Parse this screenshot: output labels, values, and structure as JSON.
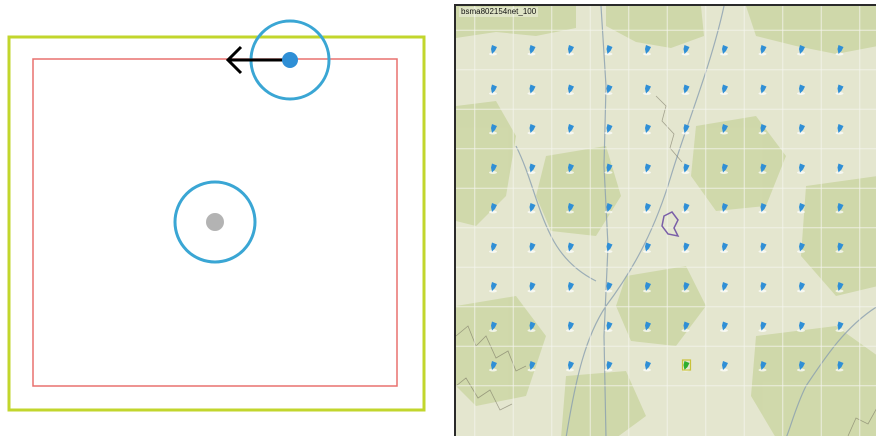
{
  "colors": {
    "outer_boundary": "#c2d62c",
    "inner_boundary": "#e8706e",
    "search_circle": "#3aa6d4",
    "active_point": "#2f8fd6",
    "inactive_point": "#b3b3b3",
    "arrow": "#000000",
    "map_background": "#e4e6cf",
    "map_patch": "#cdd7a6",
    "map_grid": "#f4f4ec",
    "station_marker": "#2f8fd6",
    "highlight_marker": "#2fae2f"
  },
  "map": {
    "title": "bsma802154net_100",
    "grid": {
      "rows": 9,
      "cols": 10
    },
    "highlight_cell": {
      "row": 8,
      "col": 5
    }
  }
}
